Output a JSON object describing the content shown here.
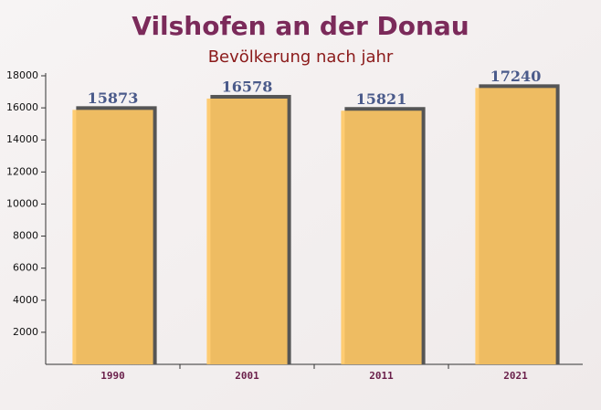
{
  "chart_data": {
    "type": "bar",
    "title": "Vilshofen an der Donau",
    "subtitle": "Bevölkerung nach jahr",
    "categories": [
      "1990",
      "2001",
      "2011",
      "2021"
    ],
    "values": [
      15873,
      16578,
      15821,
      17240
    ],
    "color": "#ffc864",
    "ylim": [
      0,
      18000
    ],
    "yticks": [
      2000,
      4000,
      6000,
      8000,
      10000,
      12000,
      14000,
      16000,
      18000
    ]
  }
}
